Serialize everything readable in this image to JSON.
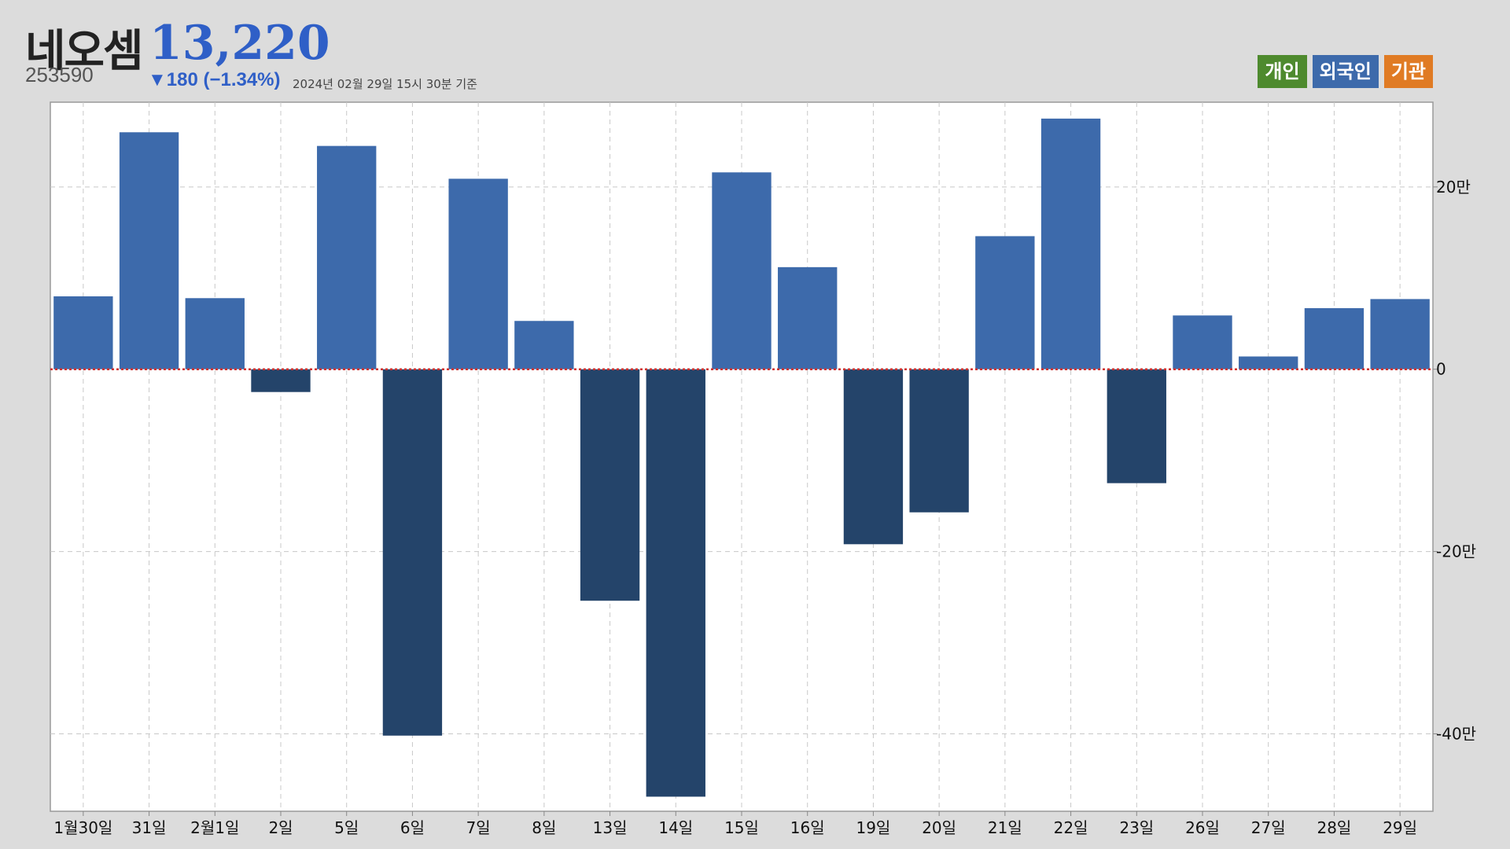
{
  "header": {
    "name": "네오셈",
    "price": "13,220",
    "code": "253590",
    "change": "▼180 (−1.34%)",
    "timestamp": "2024년 02월 29일 15시 30분 기준"
  },
  "legend": [
    {
      "label": "개인",
      "color": "#4e8a2e"
    },
    {
      "label": "외국인",
      "color": "#3d6aab"
    },
    {
      "label": "기관",
      "color": "#e07b24"
    }
  ],
  "chart_data": {
    "type": "bar",
    "categories": [
      "1월30일",
      "31일",
      "2월1일",
      "2일",
      "5일",
      "6일",
      "7일",
      "8일",
      "13일",
      "14일",
      "15일",
      "16일",
      "19일",
      "20일",
      "21일",
      "22일",
      "23일",
      "26일",
      "27일",
      "28일",
      "29일"
    ],
    "series": [
      {
        "name": "외국인",
        "values": [
          80000,
          260000,
          78000,
          -25000,
          245000,
          -402000,
          209000,
          53000,
          -254000,
          -469000,
          216000,
          112000,
          -192000,
          -157000,
          146000,
          275000,
          -125000,
          59000,
          14000,
          67000,
          77000
        ]
      }
    ],
    "yticks": [
      200000,
      0,
      -200000,
      -400000
    ],
    "ytick_labels": [
      "20만",
      "0",
      "-20만",
      "-40만"
    ],
    "ylim": [
      -485000,
      293000
    ],
    "positive_color": "#3d6aab",
    "negative_color": "#24446a",
    "zero_line_color": "#d0312d",
    "grid": true,
    "legend_position": "top-right"
  }
}
